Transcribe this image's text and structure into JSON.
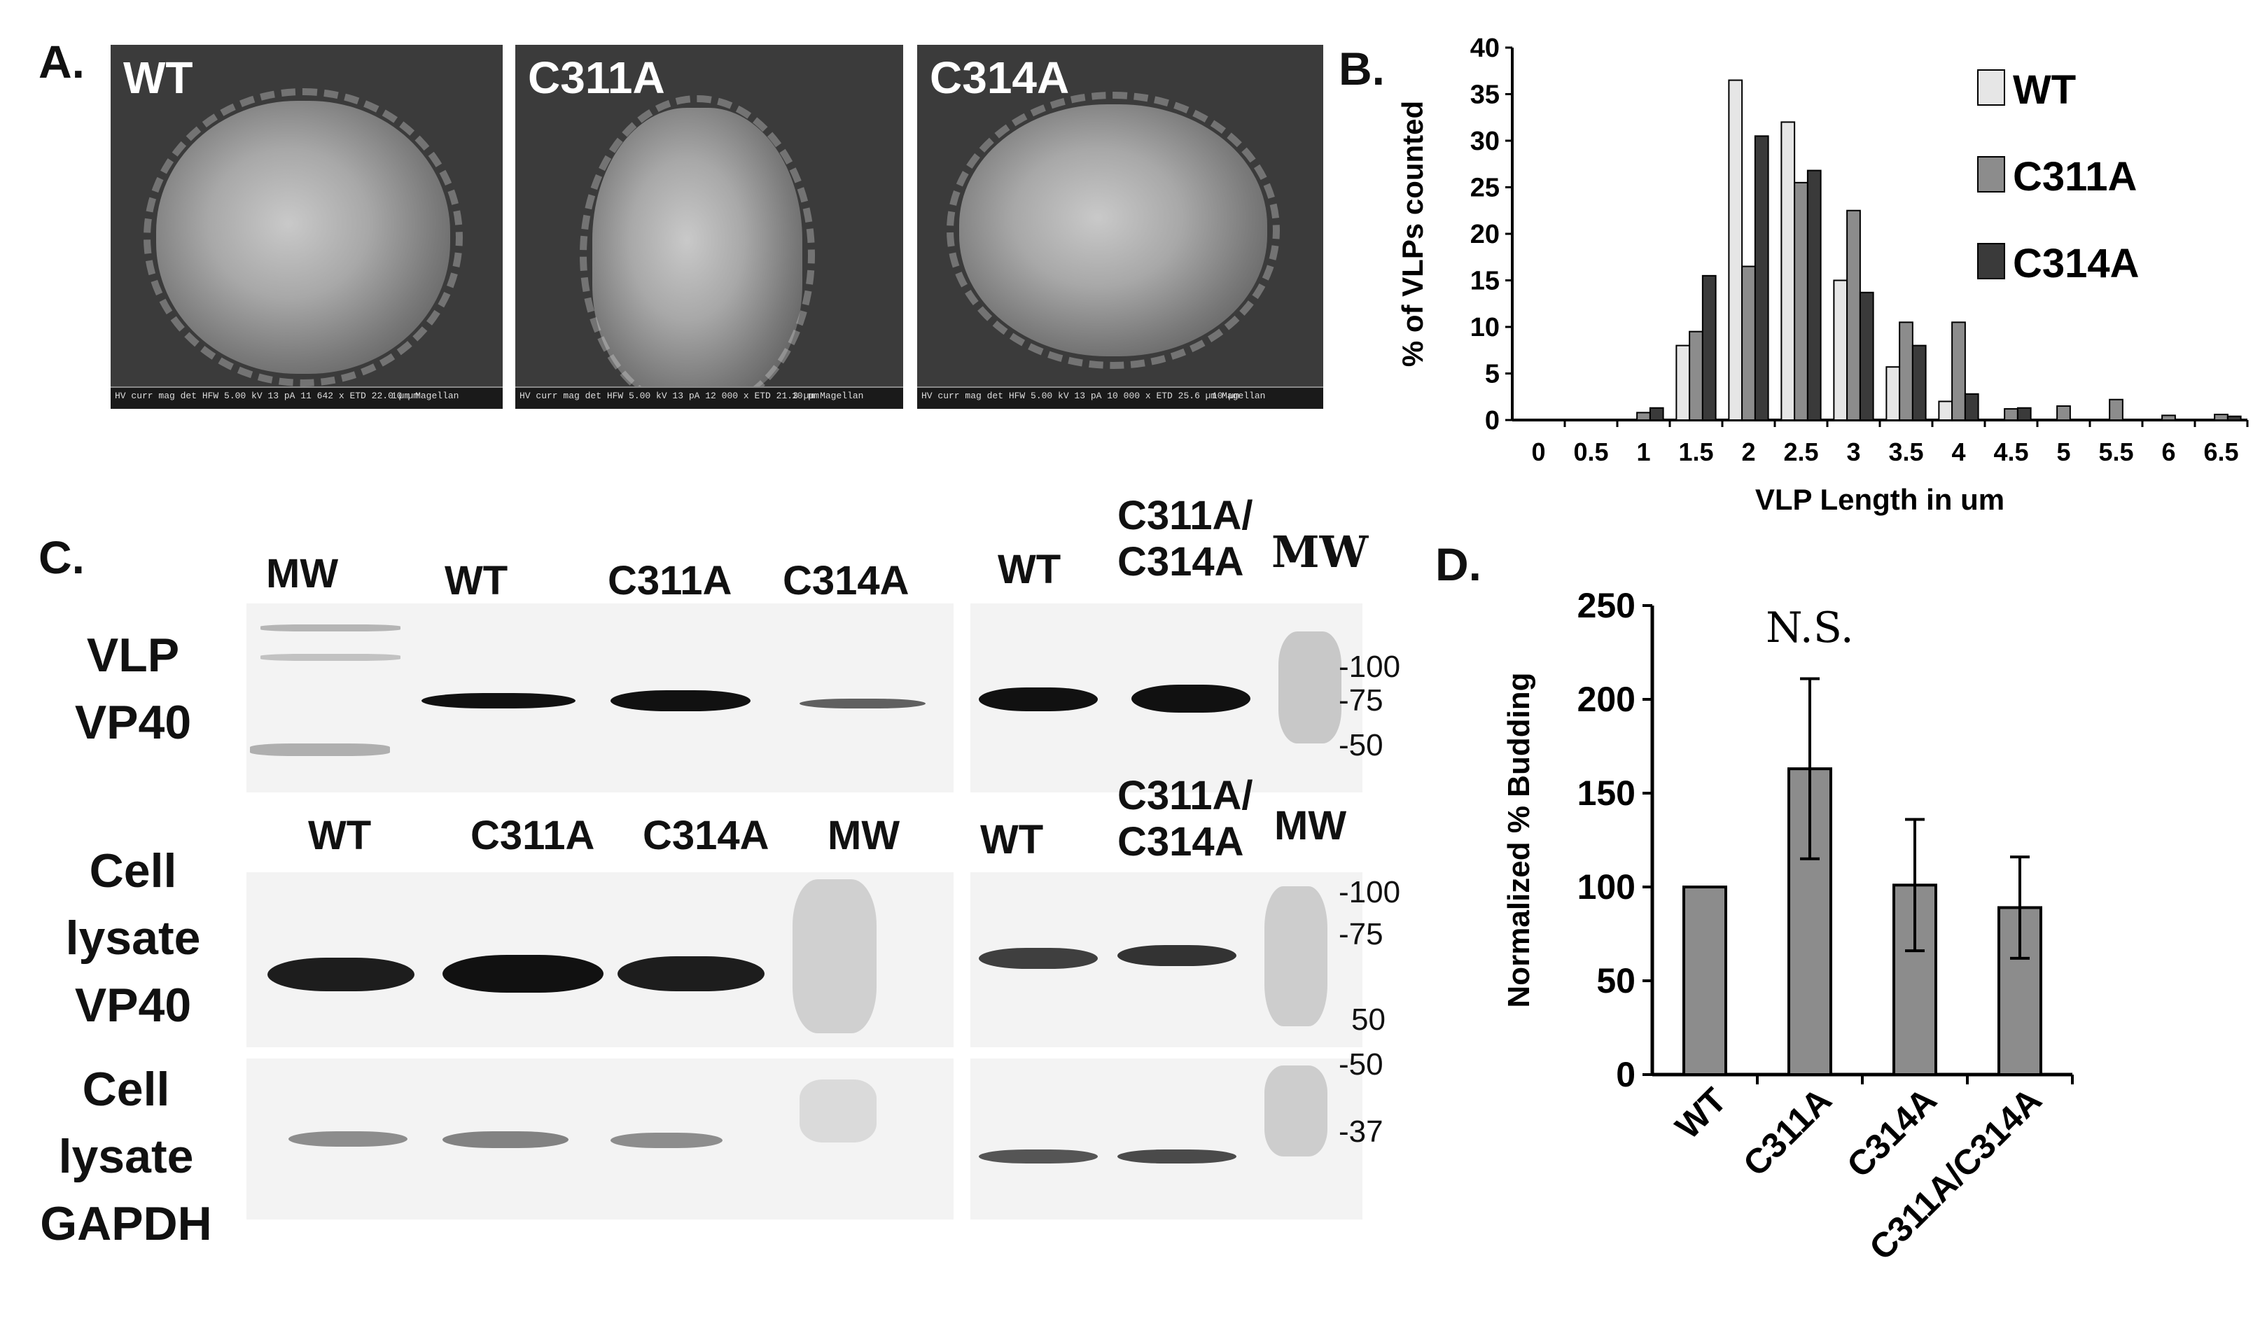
{
  "panelA": {
    "label": "A.",
    "images": [
      {
        "label": "WT",
        "scale": "10 µm",
        "meta": "HV curr mag det HFW  5.00 kV 13 pA 11 642 x ETD 22.0 µm  Magellan"
      },
      {
        "label": "C311A",
        "scale": "10 µm",
        "meta": "HV curr mag det HFW  5.00 kV 13 pA 12 000 x ETD 21.3 µm  Magellan"
      },
      {
        "label": "C314A",
        "scale": "10 µm",
        "meta": "HV curr mag det HFW  5.00 kV 13 pA 10 000 x ETD 25.6 µm  Magellan"
      }
    ]
  },
  "panelB": {
    "label": "B.",
    "chart_data": {
      "type": "bar",
      "xlabel": "VLP Length in um",
      "ylabel": "% of VLPs counted",
      "ylim": [
        0,
        40
      ],
      "yticks": [
        "0",
        "5",
        "10",
        "15",
        "20",
        "25",
        "30",
        "35",
        "40"
      ],
      "categories": [
        "0",
        "0.5",
        "1",
        "1.5",
        "2",
        "2.5",
        "3",
        "3.5",
        "4",
        "4.5",
        "5",
        "5.5",
        "6",
        "6.5"
      ],
      "legend_position": "top-right",
      "series": [
        {
          "name": "WT",
          "color": "#e6e6e6",
          "values": [
            0,
            0,
            0,
            8,
            36.5,
            32,
            15,
            5.7,
            2,
            0,
            0,
            0,
            0,
            0
          ]
        },
        {
          "name": "C311A",
          "color": "#8c8c8c",
          "values": [
            0,
            0,
            0.8,
            9.5,
            16.5,
            25.5,
            22.5,
            10.5,
            10.5,
            1.2,
            1.5,
            2.2,
            0.5,
            0.6
          ]
        },
        {
          "name": "C314A",
          "color": "#3a3a3a",
          "values": [
            0,
            0,
            1.3,
            15.5,
            30.5,
            26.8,
            13.7,
            8,
            2.8,
            1.3,
            0,
            0,
            0,
            0.4
          ]
        }
      ]
    }
  },
  "panelC": {
    "label": "C.",
    "top_left_lanes": [
      "MW",
      "WT",
      "C311A",
      "C314A"
    ],
    "top_right_lanes": [
      "WT",
      "C311A/",
      "C314A"
    ],
    "top_right_mw": "MW",
    "mid_left_lanes": [
      "WT",
      "C311A",
      "C314A",
      "MW"
    ],
    "mid_right_lanes": [
      "WT",
      "C311A/",
      "C314A"
    ],
    "mid_right_mw": "MW",
    "row_labels": [
      {
        "l1": "VLP",
        "l2": "VP40",
        "l3": ""
      },
      {
        "l1": "Cell",
        "l2": "lysate",
        "l3": "VP40"
      },
      {
        "l1": "Cell",
        "l2": "lysate",
        "l3": "GAPDH"
      }
    ],
    "mw_markers": [
      "-100",
      "-75",
      "-50",
      "-100",
      "-75",
      "50",
      "-50",
      "-37"
    ]
  },
  "panelD": {
    "label": "D.",
    "chart_data": {
      "type": "bar",
      "ylabel": "Normalized % Budding",
      "ylim": [
        0,
        250
      ],
      "yticks": [
        "0",
        "50",
        "100",
        "150",
        "200",
        "250"
      ],
      "categories": [
        "WT",
        "C311A",
        "C314A",
        "C311A/C314A"
      ],
      "values": [
        100,
        163,
        101,
        89
      ],
      "errors": [
        0,
        48,
        35,
        27
      ],
      "color": "#8c8c8c",
      "annotation": "N.S."
    }
  }
}
